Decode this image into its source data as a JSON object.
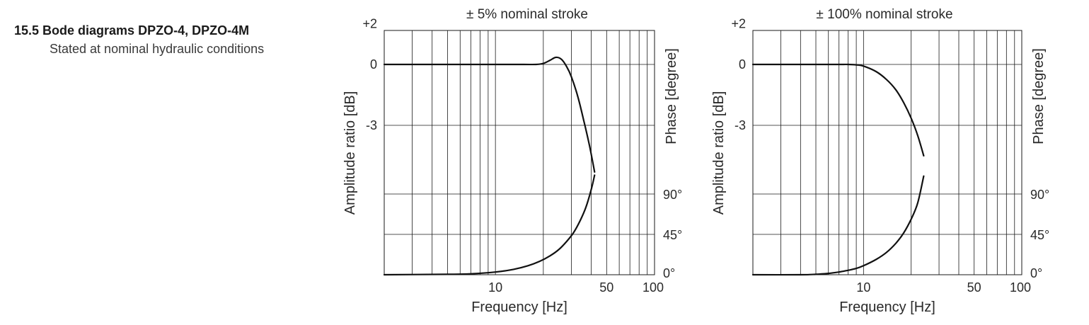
{
  "header": {
    "title": "15.5 Bode diagrams DPZO-4, DPZO-4M",
    "subtitle": "Stated at nominal hydraulic conditions"
  },
  "chart_data": [
    {
      "type": "line",
      "title": "± 5% nominal stroke",
      "xlabel": "Frequency [Hz]",
      "ylabel": "Amplitude ratio  [dB]",
      "ylabel_right": "Phase [degree]",
      "x_scale": "log",
      "xlim": [
        2,
        100
      ],
      "x_tick_labels": [
        "10",
        "50",
        "100"
      ],
      "y_tick_labels_left": [
        "+2",
        "0",
        "-3"
      ],
      "y_tick_labels_right": [
        "90°",
        "45°",
        "0°"
      ],
      "grid": true,
      "series": [
        {
          "role": "amplitude",
          "unit": "dB",
          "x": [
            2,
            5,
            10,
            15,
            18,
            20,
            22,
            24,
            26,
            28,
            30,
            33,
            36,
            39,
            42
          ],
          "y": [
            0,
            0,
            0,
            0,
            0,
            0.05,
            0.2,
            0.35,
            0.25,
            -0.1,
            -0.6,
            -1.6,
            -2.8,
            -4.0,
            -5.3
          ]
        },
        {
          "role": "phase",
          "unit": "degree",
          "x": [
            2,
            5,
            7,
            10,
            13,
            16,
            19,
            22,
            25,
            28,
            31,
            34,
            37,
            40,
            42
          ],
          "y": [
            0,
            0.5,
            1,
            3,
            6,
            10,
            15,
            21,
            28,
            37,
            47,
            60,
            75,
            95,
            111
          ]
        }
      ]
    },
    {
      "type": "line",
      "title": "± 100% nominal stroke",
      "xlabel": "Frequency [Hz]",
      "ylabel": "Amplitude ratio  [dB]",
      "ylabel_right": "Phase [degree]",
      "x_scale": "log",
      "xlim": [
        2,
        100
      ],
      "x_tick_labels": [
        "10",
        "50",
        "100"
      ],
      "y_tick_labels_left": [
        "+2",
        "0",
        "-3"
      ],
      "y_tick_labels_right": [
        "90°",
        "45°",
        "0°"
      ],
      "grid": true,
      "series": [
        {
          "role": "amplitude",
          "unit": "dB",
          "x": [
            2,
            5,
            7,
            8,
            9,
            10,
            12,
            14,
            16,
            18,
            20,
            22,
            24
          ],
          "y": [
            0,
            0,
            0,
            0,
            -0.02,
            -0.08,
            -0.35,
            -0.75,
            -1.25,
            -1.9,
            -2.65,
            -3.5,
            -4.5
          ]
        },
        {
          "role": "phase",
          "unit": "degree",
          "x": [
            2,
            4,
            5,
            6,
            7,
            8,
            9,
            10,
            12,
            14,
            16,
            18,
            20,
            22,
            24
          ],
          "y": [
            0,
            0,
            0.5,
            1.5,
            3,
            5,
            7,
            10,
            17,
            25,
            35,
            47,
            62,
            80,
            110
          ]
        }
      ]
    }
  ]
}
